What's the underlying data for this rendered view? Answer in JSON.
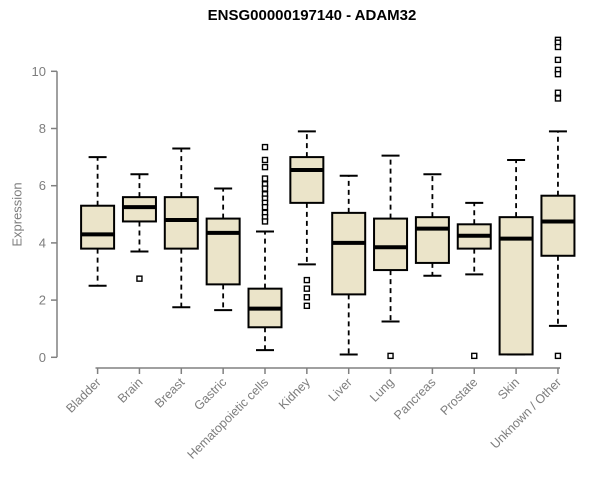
{
  "colors": {
    "box_fill": "#EBE4C9",
    "box_stroke": "#000000",
    "median_color": "#000000",
    "whisker_color": "#000000",
    "outlier_color": "#000000",
    "axis_line": "#808080",
    "axis_text": "#7d7d7d",
    "title_color": "#000000",
    "background": "#ffffff"
  },
  "chart_data": {
    "type": "boxplot",
    "title": "ENSG00000197140 - ADAM32",
    "xlabel": "",
    "ylabel": "Expression",
    "ylim": [
      0,
      11.3
    ],
    "yticks": [
      0,
      2,
      4,
      6,
      8,
      10
    ],
    "ytick_labels": [
      "0",
      "2",
      "4",
      "6",
      "8",
      "10"
    ],
    "grid": false,
    "legend": false,
    "categories": [
      "Bladder",
      "Brain",
      "Breast",
      "Gastric",
      "Hematopoietic cells",
      "Kidney",
      "Liver",
      "Lung",
      "Pancreas",
      "Prostate",
      "Skin",
      "Unknown / Other"
    ],
    "series": [
      {
        "name": "Bladder",
        "whisker_low": 2.5,
        "q1": 3.8,
        "median": 4.3,
        "q3": 5.3,
        "whisker_high": 7.0,
        "outliers": []
      },
      {
        "name": "Brain",
        "whisker_low": 3.7,
        "q1": 4.75,
        "median": 5.25,
        "q3": 5.6,
        "whisker_high": 6.4,
        "outliers": [
          2.75
        ]
      },
      {
        "name": "Breast",
        "whisker_low": 1.75,
        "q1": 3.8,
        "median": 4.8,
        "q3": 5.6,
        "whisker_high": 7.3,
        "outliers": []
      },
      {
        "name": "Gastric",
        "whisker_low": 1.65,
        "q1": 2.55,
        "median": 4.35,
        "q3": 4.85,
        "whisker_high": 5.9,
        "outliers": []
      },
      {
        "name": "Hematopoietic cells",
        "whisker_low": 0.25,
        "q1": 1.05,
        "median": 1.7,
        "q3": 2.4,
        "whisker_high": 4.4,
        "outliers": [
          7.35,
          6.9,
          6.65,
          6.25,
          6.05,
          5.9,
          5.7,
          5.55,
          5.4,
          5.25,
          5.05,
          4.9,
          4.75
        ]
      },
      {
        "name": "Kidney",
        "whisker_low": 3.25,
        "q1": 5.4,
        "median": 6.55,
        "q3": 7.0,
        "whisker_high": 7.9,
        "outliers": [
          2.7,
          2.4,
          2.1,
          1.8
        ]
      },
      {
        "name": "Liver",
        "whisker_low": 0.1,
        "q1": 2.2,
        "median": 4.0,
        "q3": 5.05,
        "whisker_high": 6.35,
        "outliers": []
      },
      {
        "name": "Lung",
        "whisker_low": 1.25,
        "q1": 3.05,
        "median": 3.85,
        "q3": 4.85,
        "whisker_high": 7.05,
        "outliers": [
          0.05
        ]
      },
      {
        "name": "Pancreas",
        "whisker_low": 2.85,
        "q1": 3.3,
        "median": 4.5,
        "q3": 4.9,
        "whisker_high": 6.4,
        "outliers": []
      },
      {
        "name": "Prostate",
        "whisker_low": 2.9,
        "q1": 3.8,
        "median": 4.25,
        "q3": 4.65,
        "whisker_high": 5.4,
        "outliers": [
          0.05
        ]
      },
      {
        "name": "Skin",
        "whisker_low": 0.1,
        "q1": 0.1,
        "median": 4.15,
        "q3": 4.9,
        "whisker_high": 6.9,
        "outliers": []
      },
      {
        "name": "Unknown / Other",
        "whisker_low": 1.1,
        "q1": 3.55,
        "median": 4.75,
        "q3": 5.65,
        "whisker_high": 7.9,
        "outliers": [
          11.1,
          11.0,
          10.85,
          10.4,
          10.05,
          9.9,
          9.25,
          9.05,
          0.05
        ]
      }
    ]
  }
}
